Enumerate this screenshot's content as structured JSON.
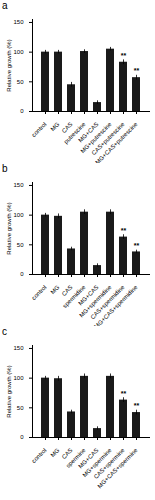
{
  "chart_data": [
    {
      "type": "bar",
      "title": "a",
      "categories": [
        "control",
        "MG",
        "CAS",
        "putrescine",
        "MG+CAS",
        "MG+putrescine",
        "CAS+putrescine",
        "MG+CAS+putrescine"
      ],
      "values": [
        100,
        100,
        45,
        101,
        15,
        105,
        83,
        57
      ],
      "errors": [
        3,
        3,
        4,
        3,
        3,
        3,
        4,
        4
      ],
      "annotations": [
        {
          "category": "CAS+putrescine",
          "text": "**"
        },
        {
          "category": "MG+CAS+putrescine",
          "text": "**"
        }
      ],
      "color": "#1a1a1a",
      "ylabel": "Relative growth (%)",
      "ylim": [
        0,
        155
      ],
      "yticks": [
        0,
        50,
        100,
        150
      ]
    },
    {
      "type": "bar",
      "title": "b",
      "categories": [
        "control",
        "MG",
        "CAS",
        "spermidine",
        "MG+CAS",
        "MG+spermidine",
        "CAS+spermidine",
        "MG+CAS+spermidine"
      ],
      "values": [
        100,
        98,
        43,
        105,
        15,
        105,
        63,
        38
      ],
      "errors": [
        3,
        4,
        3,
        4,
        3,
        4,
        4,
        3
      ],
      "annotations": [
        {
          "category": "CAS+spermidine",
          "text": "**"
        },
        {
          "category": "MG+CAS+spermidine",
          "text": "**"
        }
      ],
      "color": "#1a1a1a",
      "ylabel": "Relative growth (%)",
      "ylim": [
        0,
        155
      ],
      "yticks": [
        0,
        50,
        100,
        150
      ]
    },
    {
      "type": "bar",
      "title": "c",
      "categories": [
        "control",
        "MG",
        "CAS",
        "spermine",
        "MG+CAS",
        "MG+spermine",
        "CAS+spermine",
        "MG+CAS+spermine"
      ],
      "values": [
        100,
        99,
        43,
        103,
        15,
        103,
        63,
        42
      ],
      "errors": [
        3,
        4,
        3,
        4,
        3,
        4,
        4,
        4
      ],
      "annotations": [
        {
          "category": "CAS+spermine",
          "text": "**"
        },
        {
          "category": "MG+CAS+spermine",
          "text": "**"
        }
      ],
      "color": "#1a1a1a",
      "ylabel": "Relative growth (%)",
      "ylim": [
        0,
        155
      ],
      "yticks": [
        0,
        50,
        100,
        150
      ]
    }
  ]
}
